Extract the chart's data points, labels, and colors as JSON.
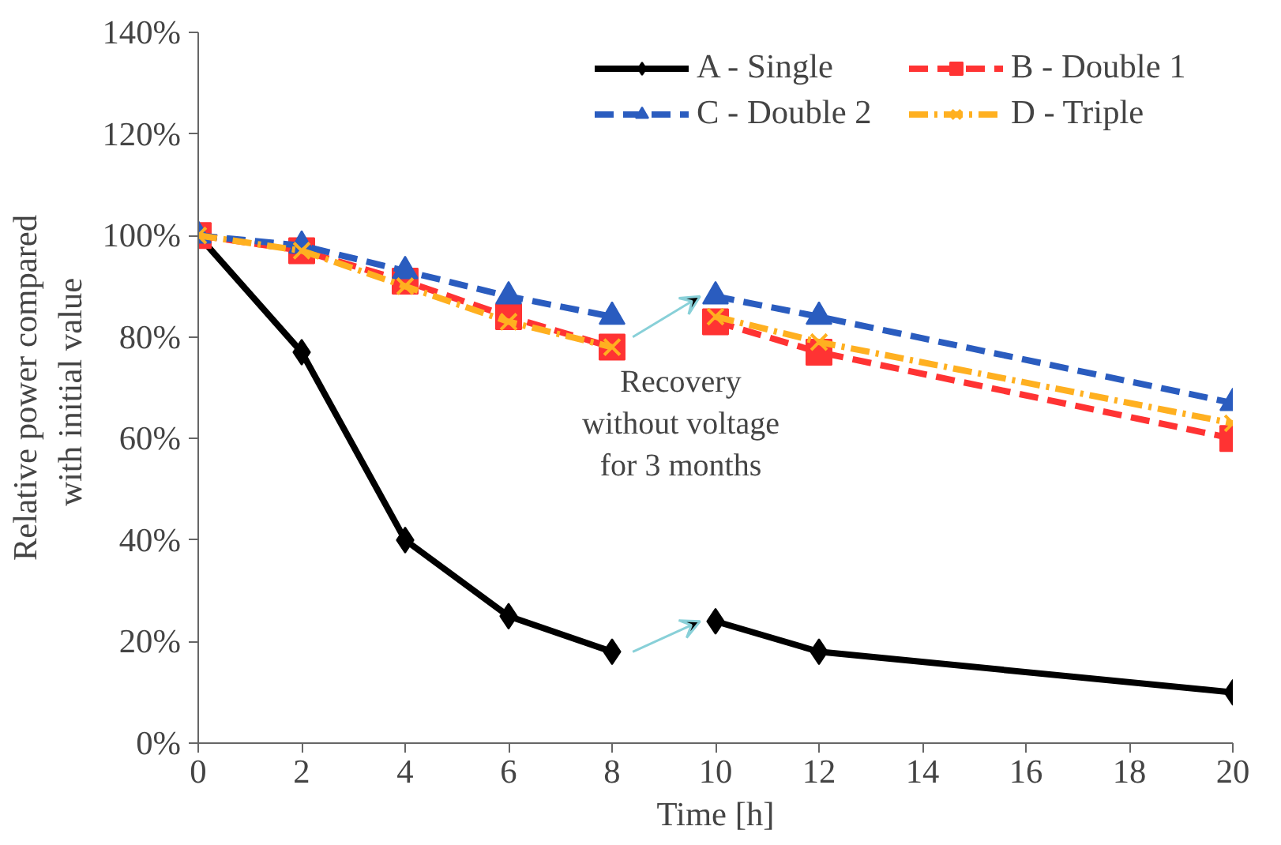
{
  "chart_data": {
    "type": "line",
    "xlabel": "Time [h]",
    "ylabel": "Relative power compared\nwith  initial value",
    "x": [
      0,
      2,
      4,
      6,
      8,
      9,
      10,
      12,
      20
    ],
    "series": [
      {
        "name": "A - Single",
        "color": "#000000",
        "marker": "diamond",
        "line_style": "solid",
        "values": [
          1.0,
          0.77,
          0.4,
          0.25,
          0.18,
          null,
          0.24,
          0.18,
          0.1
        ]
      },
      {
        "name": "B - Double 1",
        "color": "#ff3333",
        "marker": "square",
        "line_style": "dashed",
        "values": [
          1.0,
          0.97,
          0.91,
          0.84,
          0.78,
          null,
          0.83,
          0.77,
          0.6
        ]
      },
      {
        "name": "C - Double 2",
        "color": "#2a5cbf",
        "marker": "triangle",
        "line_style": "dashed",
        "values": [
          1.0,
          0.98,
          0.93,
          0.88,
          0.84,
          null,
          0.88,
          0.84,
          0.67
        ]
      },
      {
        "name": "D - Triple",
        "color": "#ffb020",
        "marker": "cross",
        "line_style": "dashdot",
        "values": [
          1.0,
          0.97,
          0.9,
          0.83,
          0.78,
          null,
          0.84,
          0.79,
          0.63
        ]
      }
    ],
    "annotations": [
      {
        "text": "Recovery\nwithout voltage\nfor 3 months",
        "x": 10,
        "y": 0.88
      }
    ],
    "xlim": [
      0,
      20
    ],
    "xticks": [
      0,
      2,
      4,
      6,
      8,
      10,
      12,
      14,
      16,
      18,
      20
    ],
    "ylim": [
      0,
      1.4
    ],
    "yticks": [
      {
        "value": 0,
        "label": "0%"
      },
      {
        "value": 0.2,
        "label": "20%"
      },
      {
        "value": 0.4,
        "label": "40%"
      },
      {
        "value": 0.6,
        "label": "60%"
      },
      {
        "value": 0.8,
        "label": "80%"
      },
      {
        "value": 1.0,
        "label": "100%"
      },
      {
        "value": 1.2,
        "label": "120%"
      },
      {
        "value": 1.4,
        "label": "140%"
      }
    ],
    "grid": false,
    "legend": "top right"
  }
}
